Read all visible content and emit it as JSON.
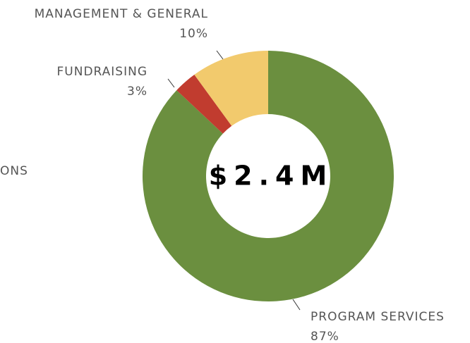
{
  "chart_data": {
    "type": "pie",
    "categories": [
      "PROGRAM SERVICES",
      "FUNDRAISING",
      "MANAGEMENT & GENERAL"
    ],
    "values": [
      87,
      3,
      10
    ],
    "value_labels": [
      "87%",
      "3%",
      "10%"
    ],
    "colors": [
      "#6b8f3f",
      "#c13c2f",
      "#f2ca6d"
    ],
    "center_label": "$2.4M",
    "annotations": [
      "ONS"
    ]
  }
}
